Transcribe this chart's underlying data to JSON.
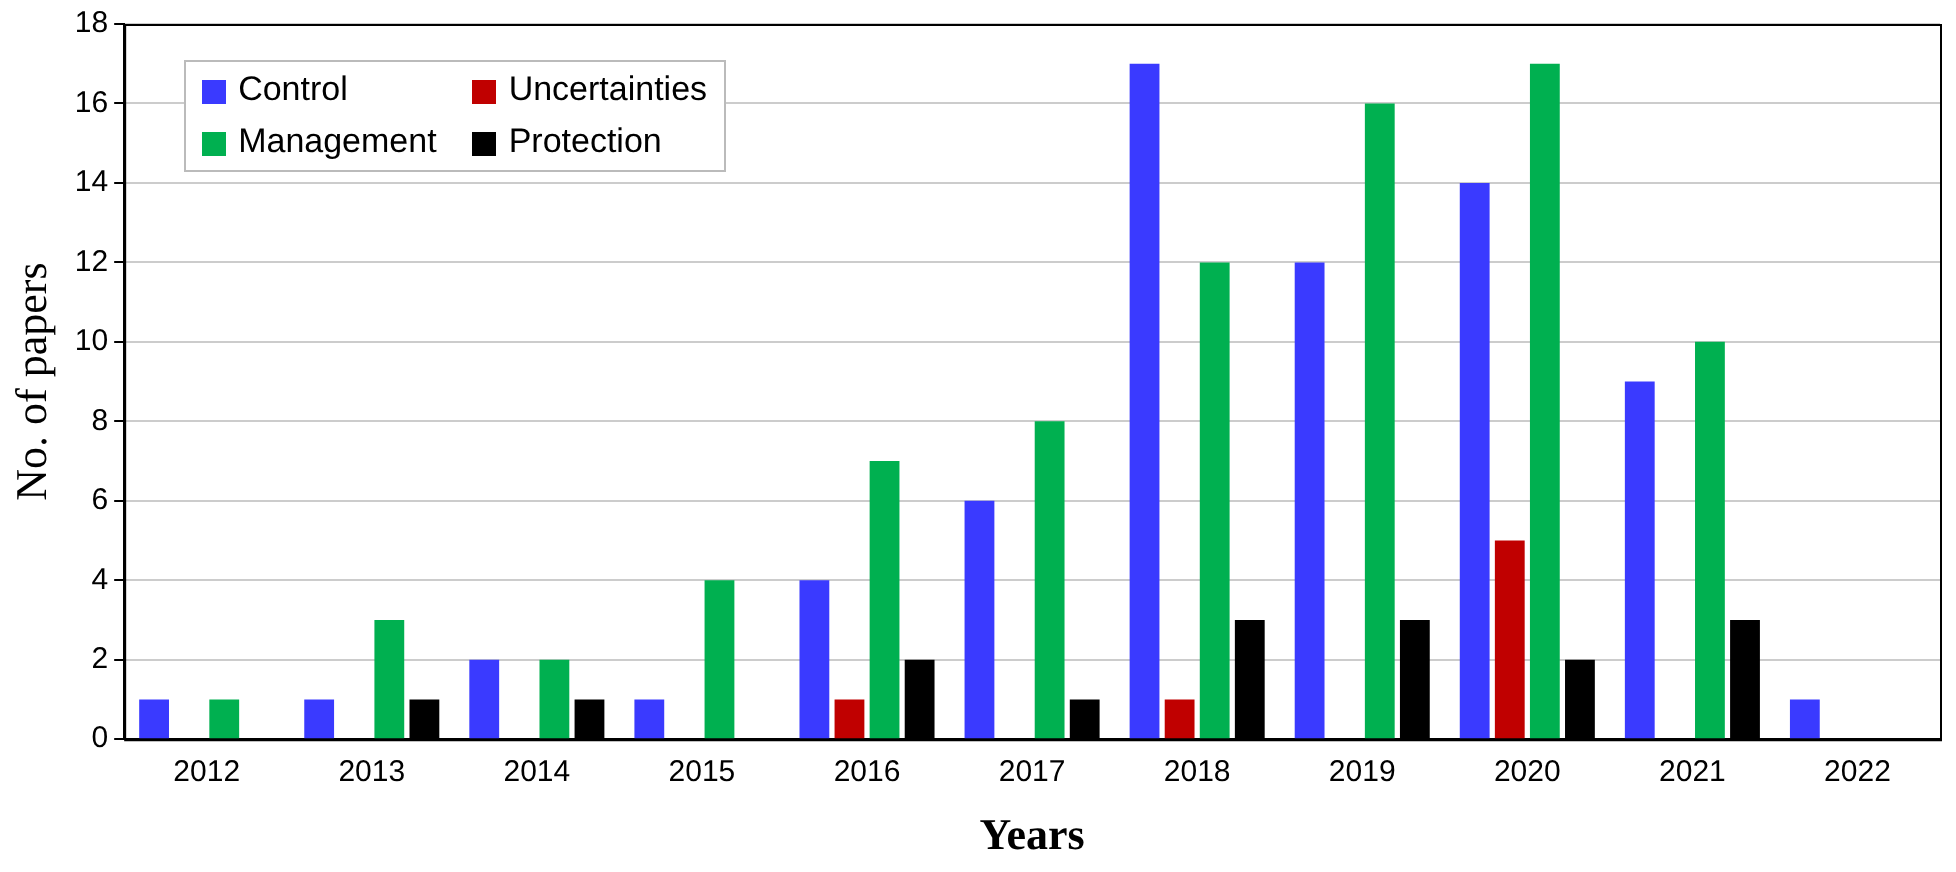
{
  "chart_data": {
    "type": "bar",
    "xlabel": "Years",
    "ylabel": "No. of papers",
    "categories": [
      "2012",
      "2013",
      "2014",
      "2015",
      "2016",
      "2017",
      "2018",
      "2019",
      "2020",
      "2021",
      "2022"
    ],
    "series": [
      {
        "name": "Control",
        "color": "#3a3aff",
        "values": [
          1,
          1,
          2,
          1,
          4,
          6,
          17,
          12,
          14,
          9,
          1
        ]
      },
      {
        "name": "Uncertainties",
        "color": "#c00000",
        "values": [
          0,
          0,
          0,
          0,
          1,
          0,
          1,
          0,
          5,
          0,
          0
        ]
      },
      {
        "name": "Management",
        "color": "#00b050",
        "values": [
          1,
          3,
          2,
          4,
          7,
          8,
          12,
          16,
          17,
          10,
          0
        ]
      },
      {
        "name": "Protection",
        "color": "#000000",
        "values": [
          0,
          1,
          1,
          0,
          2,
          1,
          3,
          3,
          2,
          3,
          0
        ]
      }
    ],
    "ylim": [
      0,
      18
    ],
    "yticks": [
      0,
      2,
      4,
      6,
      8,
      10,
      12,
      14,
      16,
      18
    ],
    "grid": "y",
    "legend": "top left"
  }
}
